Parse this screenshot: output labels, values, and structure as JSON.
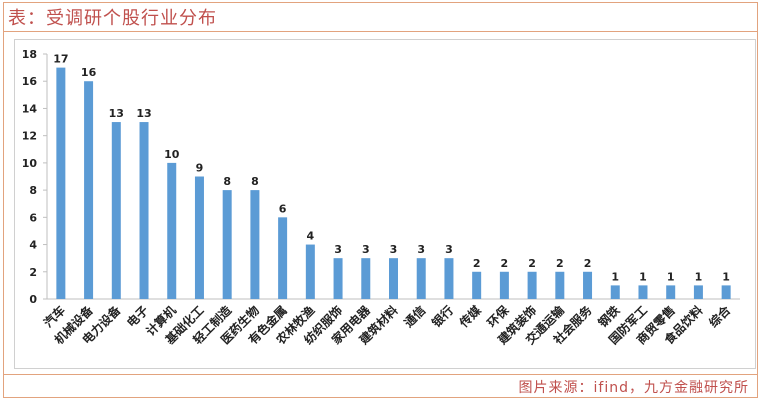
{
  "header": {
    "title": "表：受调研个股行业分布"
  },
  "footer": {
    "source": "图片来源：ifind，九方金融研究所"
  },
  "colors": {
    "bar": "#5b9bd5",
    "accent": "#c0504d",
    "border": "#e2a37e"
  },
  "chart_data": {
    "type": "bar",
    "title": "",
    "xlabel": "",
    "ylabel": "",
    "ylim": [
      0,
      18
    ],
    "yticks": [
      0,
      2,
      4,
      6,
      8,
      10,
      12,
      14,
      16,
      18
    ],
    "grid": false,
    "legend": "none",
    "categories": [
      "汽车",
      "机械设备",
      "电力设备",
      "电子",
      "计算机",
      "基础化工",
      "轻工制造",
      "医药生物",
      "有色金属",
      "农林牧渔",
      "纺织服饰",
      "家用电器",
      "建筑材料",
      "通信",
      "银行",
      "传媒",
      "环保",
      "建筑装饰",
      "交通运输",
      "社会服务",
      "钢铁",
      "国防军工",
      "商贸零售",
      "食品饮料",
      "综合"
    ],
    "values": [
      17,
      16,
      13,
      13,
      10,
      9,
      8,
      8,
      6,
      4,
      3,
      3,
      3,
      3,
      3,
      2,
      2,
      2,
      2,
      2,
      1,
      1,
      1,
      1,
      1
    ]
  }
}
